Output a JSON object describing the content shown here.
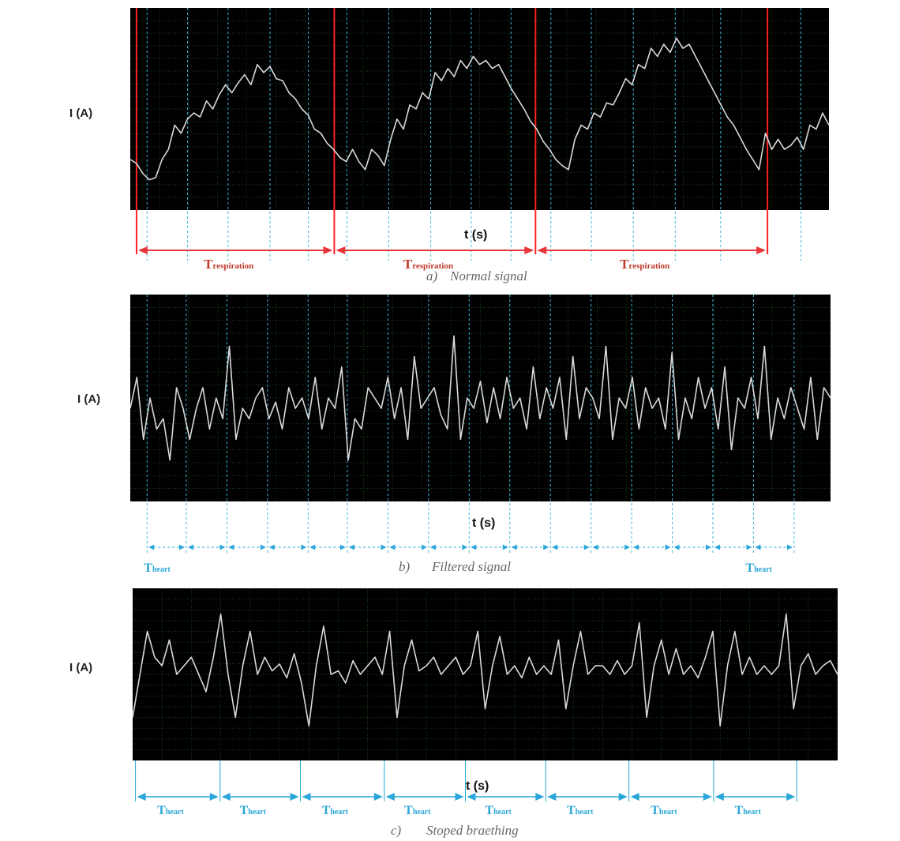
{
  "chart_data": [
    {
      "id": "a",
      "type": "line",
      "caption_prefix": "a)",
      "caption": "Normal signal",
      "ylabel": "I (A)",
      "xlabel": "t (s)",
      "respiration_label": "T",
      "respiration_sub": "respiration",
      "respiration_boundaries": [
        0.009,
        0.292,
        0.58,
        0.912
      ],
      "beat_lines": [
        0.024,
        0.082,
        0.14,
        0.2,
        0.255,
        0.31,
        0.37,
        0.43,
        0.488,
        0.545,
        0.602,
        0.66,
        0.72,
        0.78,
        0.845,
        0.96
      ],
      "series": [
        {
          "values": [
            0.25,
            0.23,
            0.18,
            0.15,
            0.16,
            0.25,
            0.3,
            0.42,
            0.38,
            0.45,
            0.48,
            0.46,
            0.54,
            0.5,
            0.57,
            0.62,
            0.58,
            0.63,
            0.67,
            0.62,
            0.72,
            0.68,
            0.71,
            0.65,
            0.64,
            0.58,
            0.55,
            0.5,
            0.47,
            0.4,
            0.38,
            0.33,
            0.3,
            0.26,
            0.24,
            0.3,
            0.24,
            0.2,
            0.3,
            0.27,
            0.22,
            0.35,
            0.45,
            0.4,
            0.52,
            0.5,
            0.58,
            0.55,
            0.68,
            0.64,
            0.7,
            0.66,
            0.74,
            0.7,
            0.76,
            0.72,
            0.74,
            0.7,
            0.72,
            0.66,
            0.6,
            0.55,
            0.5,
            0.44,
            0.4,
            0.34,
            0.3,
            0.25,
            0.22,
            0.2,
            0.35,
            0.42,
            0.4,
            0.48,
            0.46,
            0.53,
            0.52,
            0.58,
            0.65,
            0.62,
            0.72,
            0.7,
            0.8,
            0.76,
            0.82,
            0.78,
            0.85,
            0.8,
            0.82,
            0.76,
            0.7,
            0.64,
            0.58,
            0.52,
            0.46,
            0.42,
            0.36,
            0.3,
            0.25,
            0.2,
            0.38,
            0.3,
            0.35,
            0.3,
            0.32,
            0.36,
            0.3,
            0.42,
            0.4,
            0.48,
            0.42
          ]
        }
      ]
    },
    {
      "id": "b",
      "type": "line",
      "caption_prefix": "b)",
      "caption": "Filtered signal",
      "ylabel": "I (A)",
      "xlabel": "t (s)",
      "beat_label": "T",
      "beat_sub": "heart",
      "beat_lines": [
        0.024,
        0.08,
        0.138,
        0.196,
        0.254,
        0.31,
        0.368,
        0.426,
        0.484,
        0.542,
        0.6,
        0.658,
        0.716,
        0.774,
        0.832,
        0.89,
        0.948
      ],
      "series": [
        {
          "values": [
            0.45,
            0.6,
            0.3,
            0.5,
            0.35,
            0.4,
            0.2,
            0.55,
            0.45,
            0.3,
            0.45,
            0.55,
            0.35,
            0.5,
            0.4,
            0.75,
            0.3,
            0.45,
            0.4,
            0.5,
            0.55,
            0.4,
            0.48,
            0.35,
            0.55,
            0.45,
            0.5,
            0.4,
            0.6,
            0.35,
            0.5,
            0.45,
            0.65,
            0.2,
            0.4,
            0.35,
            0.55,
            0.5,
            0.45,
            0.6,
            0.4,
            0.55,
            0.3,
            0.7,
            0.45,
            0.5,
            0.55,
            0.42,
            0.35,
            0.8,
            0.3,
            0.5,
            0.45,
            0.58,
            0.38,
            0.55,
            0.4,
            0.6,
            0.45,
            0.5,
            0.35,
            0.65,
            0.4,
            0.55,
            0.45,
            0.6,
            0.3,
            0.7,
            0.4,
            0.55,
            0.5,
            0.4,
            0.75,
            0.3,
            0.5,
            0.45,
            0.6,
            0.35,
            0.55,
            0.45,
            0.5,
            0.35,
            0.72,
            0.3,
            0.5,
            0.4,
            0.6,
            0.45,
            0.55,
            0.35,
            0.65,
            0.25,
            0.5,
            0.45,
            0.6,
            0.4,
            0.75,
            0.3,
            0.5,
            0.4,
            0.55,
            0.45,
            0.35,
            0.6,
            0.3,
            0.55,
            0.5
          ]
        }
      ]
    },
    {
      "id": "c",
      "type": "line",
      "caption_prefix": "c)",
      "caption": "Stoped braething",
      "ylabel": "I (A)",
      "xlabel": "t (s)",
      "beat_label": "T",
      "beat_sub": "heart",
      "beat_lines": [
        0.004,
        0.124,
        0.238,
        0.357,
        0.472,
        0.586,
        0.704,
        0.824,
        0.942
      ],
      "series": [
        {
          "values": [
            0.25,
            0.5,
            0.75,
            0.6,
            0.55,
            0.7,
            0.5,
            0.55,
            0.6,
            0.5,
            0.4,
            0.6,
            0.85,
            0.5,
            0.25,
            0.55,
            0.75,
            0.5,
            0.6,
            0.52,
            0.56,
            0.48,
            0.62,
            0.45,
            0.2,
            0.55,
            0.78,
            0.5,
            0.52,
            0.45,
            0.58,
            0.5,
            0.55,
            0.6,
            0.5,
            0.75,
            0.25,
            0.55,
            0.7,
            0.52,
            0.55,
            0.6,
            0.5,
            0.55,
            0.6,
            0.5,
            0.55,
            0.75,
            0.3,
            0.55,
            0.72,
            0.5,
            0.55,
            0.48,
            0.6,
            0.5,
            0.55,
            0.5,
            0.7,
            0.3,
            0.55,
            0.75,
            0.5,
            0.55,
            0.55,
            0.5,
            0.58,
            0.5,
            0.55,
            0.8,
            0.25,
            0.55,
            0.7,
            0.5,
            0.65,
            0.5,
            0.55,
            0.48,
            0.6,
            0.75,
            0.2,
            0.55,
            0.75,
            0.5,
            0.6,
            0.5,
            0.55,
            0.5,
            0.55,
            0.85,
            0.3,
            0.55,
            0.62,
            0.5,
            0.55,
            0.58,
            0.5
          ]
        }
      ]
    }
  ]
}
